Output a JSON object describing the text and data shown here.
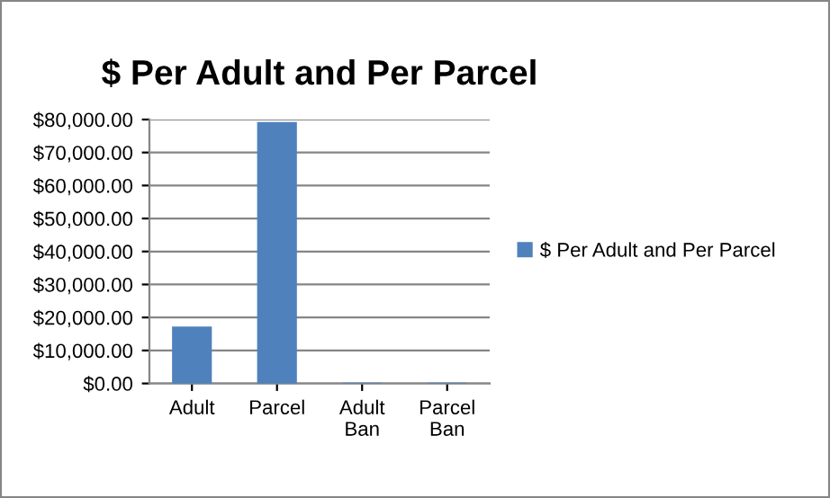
{
  "chart_data": {
    "type": "bar",
    "title": "$ Per Adult and Per Parcel",
    "categories": [
      "Adult",
      "Parcel",
      "Adult\nBan",
      "Parcel\nBan"
    ],
    "series": [
      {
        "name": "$ Per Adult and Per Parcel",
        "color": "#4f81bd",
        "values": [
          17000,
          79000,
          0,
          0
        ]
      }
    ],
    "ylim": [
      0,
      80000
    ],
    "yticks": [
      {
        "value": 0,
        "label": "$0.00"
      },
      {
        "value": 10000,
        "label": "$10,000.00"
      },
      {
        "value": 20000,
        "label": "$20,000.00"
      },
      {
        "value": 30000,
        "label": "$30,000.00"
      },
      {
        "value": 40000,
        "label": "$40,000.00"
      },
      {
        "value": 50000,
        "label": "$50,000.00"
      },
      {
        "value": 60000,
        "label": "$60,000.00"
      },
      {
        "value": 70000,
        "label": "$70,000.00"
      },
      {
        "value": 80000,
        "label": "$80,000.00"
      }
    ],
    "grid": "y",
    "legend": "right"
  }
}
